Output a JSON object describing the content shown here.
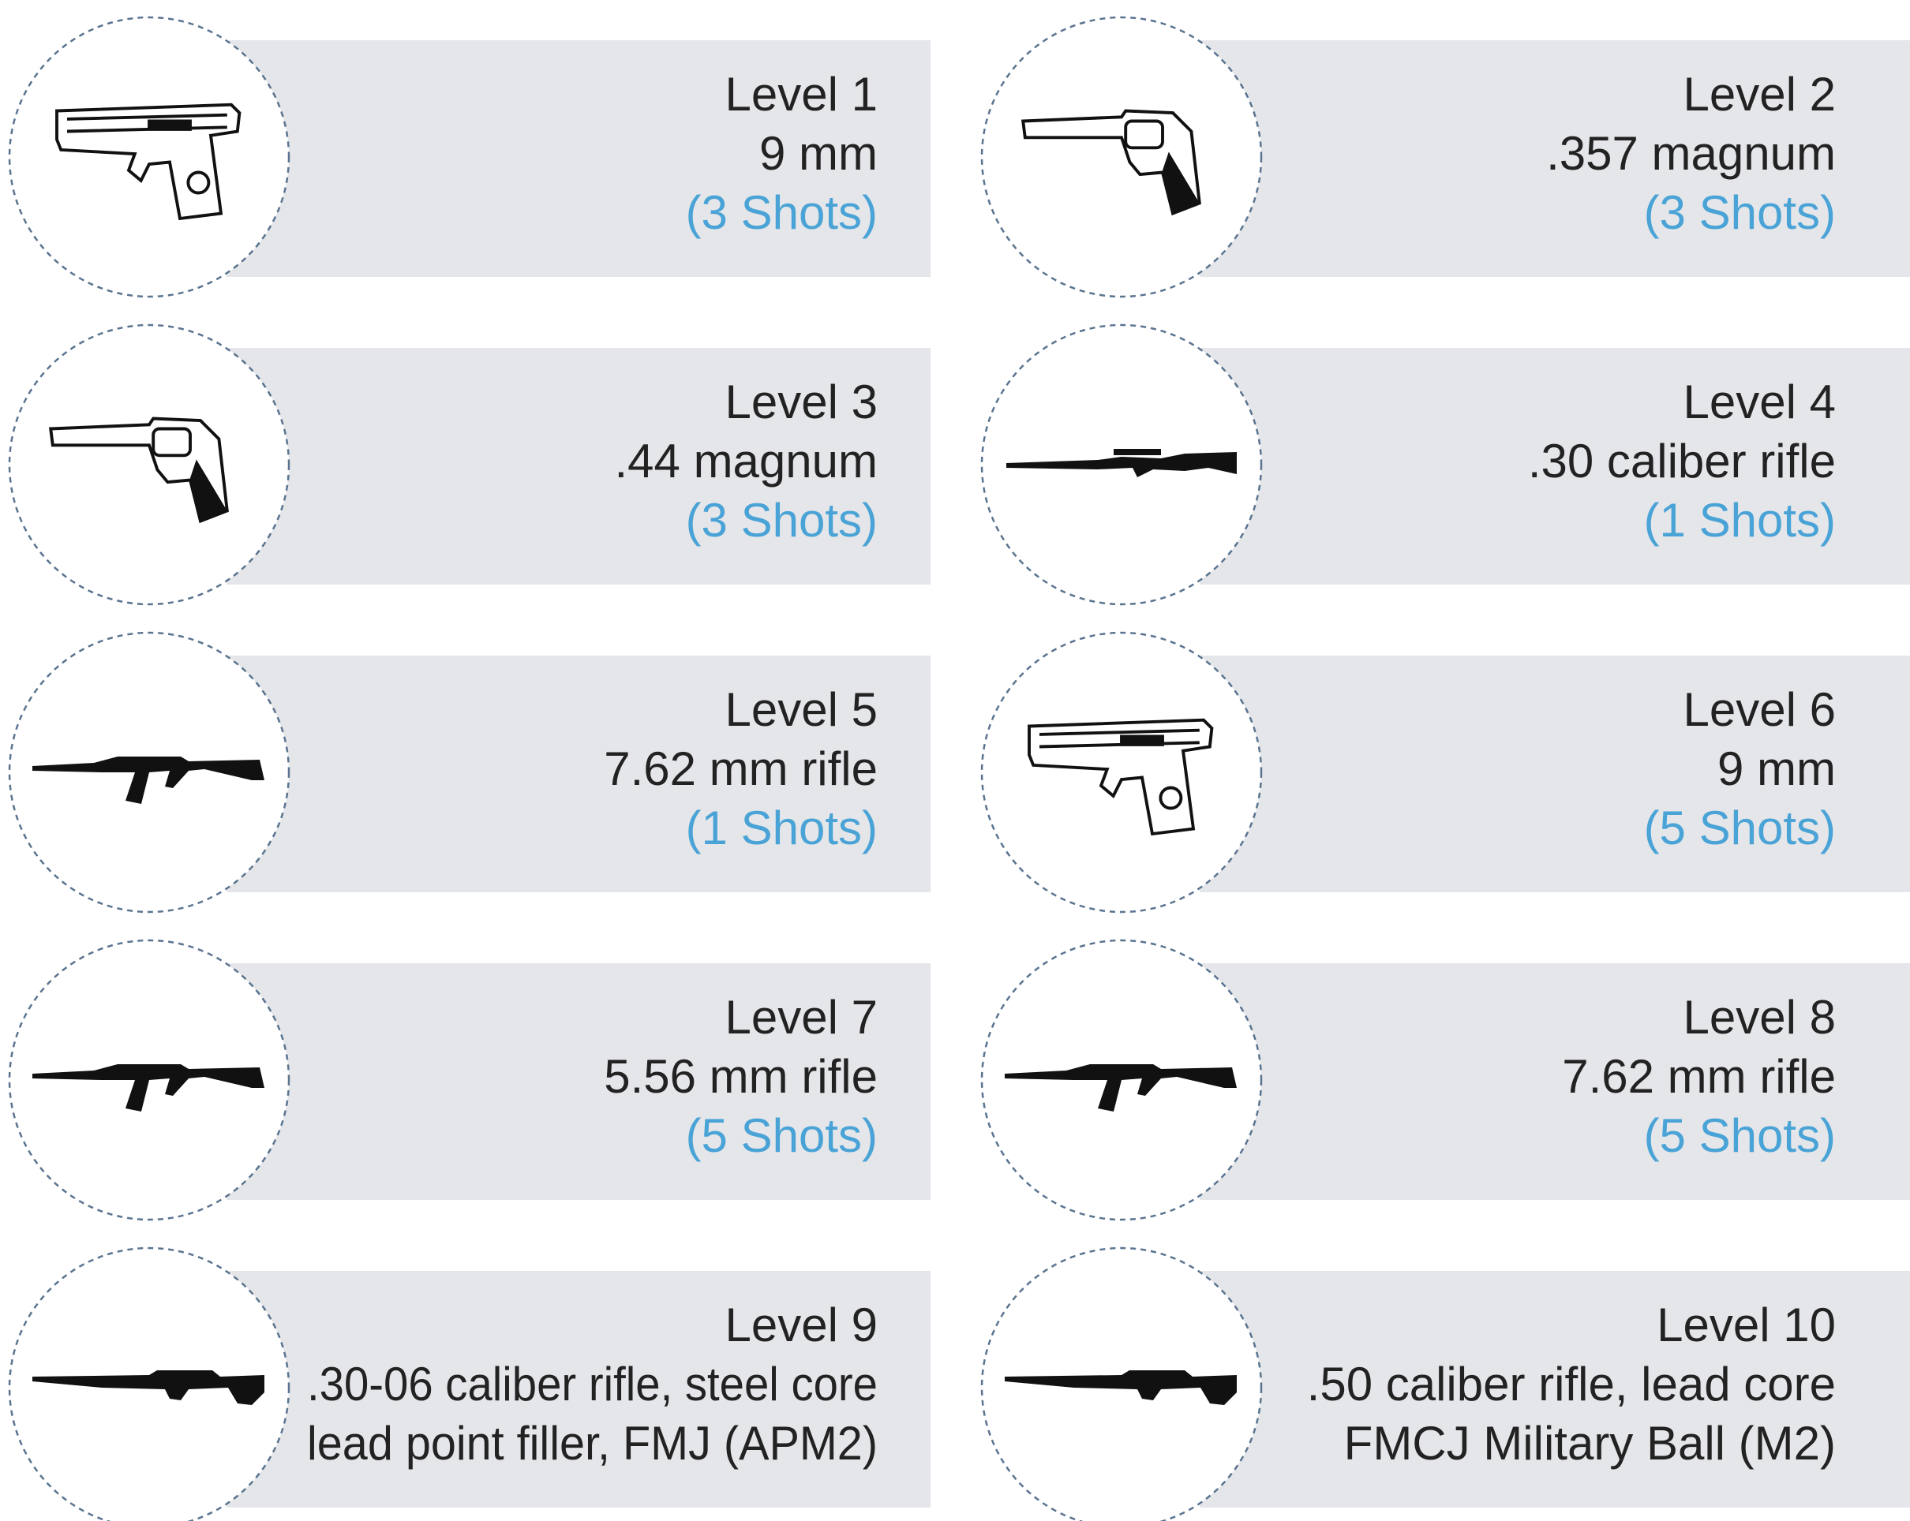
{
  "cards": [
    {
      "level": "Level 1",
      "lines": [
        "9 mm"
      ],
      "shots": "(3 Shots)"
    },
    {
      "level": "Level 2",
      "lines": [
        ".357 magnum"
      ],
      "shots": "(3 Shots)"
    },
    {
      "level": "Level 3",
      "lines": [
        ".44 magnum"
      ],
      "shots": "(3 Shots)"
    },
    {
      "level": "Level 4",
      "lines": [
        ".30 caliber rifle"
      ],
      "shots": "(1 Shots)"
    },
    {
      "level": "Level 5",
      "lines": [
        "7.62 mm rifle"
      ],
      "shots": "(1 Shots)"
    },
    {
      "level": "Level 6",
      "lines": [
        "9 mm"
      ],
      "shots": "(5 Shots)"
    },
    {
      "level": "Level 7",
      "lines": [
        "5.56 mm rifle"
      ],
      "shots": "(5 Shots)"
    },
    {
      "level": "Level 8",
      "lines": [
        "7.62 mm rifle"
      ],
      "shots": "(5 Shots)"
    },
    {
      "level": "Level 9",
      "lines": [
        ".30-06 caliber rifle, steel core",
        "lead point filler, FMJ (APM2)"
      ]
    },
    {
      "level": "Level 10",
      "lines": [
        ".50 caliber rifle, lead core",
        "FMCJ Military Ball (M2)"
      ]
    }
  ]
}
